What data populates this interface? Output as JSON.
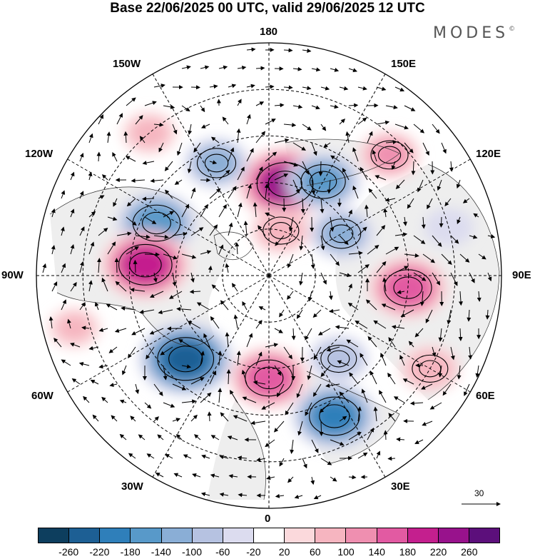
{
  "title": "Base 22/06/2025 00 UTC, valid 29/06/2025 12 UTC",
  "brand": "MODES",
  "brand_mark": "©",
  "longitude_labels": {
    "lon_180": "180",
    "lon_150e": "150E",
    "lon_120e": "120E",
    "lon_90e": "90E",
    "lon_60e": "60E",
    "lon_30e": "30E",
    "lon_0": "0",
    "lon_30w": "30W",
    "lon_60w": "60W",
    "lon_90w": "90W",
    "lon_120w": "120W",
    "lon_150w": "150W"
  },
  "wind_reference": {
    "value": "30"
  },
  "colorbar": {
    "colors": [
      "#0d3e5e",
      "#1d5f94",
      "#2f7fba",
      "#5899c9",
      "#8aaed6",
      "#b6c2e1",
      "#dcdcef",
      "#ffffff",
      "#fbd9dc",
      "#f6b5c0",
      "#ef8fb0",
      "#e25aa2",
      "#c41f8e",
      "#98128c",
      "#5c0f7b"
    ],
    "ticks": [
      "-260",
      "-220",
      "-180",
      "-140",
      "-100",
      "-60",
      "-20",
      "20",
      "60",
      "100",
      "140",
      "180",
      "220",
      "260"
    ]
  },
  "anomaly_centers": [
    {
      "lon": 170,
      "lat": 60,
      "value": 230
    },
    {
      "lon": 150,
      "lat": 55,
      "value": -150
    },
    {
      "lon": -155,
      "lat": 50,
      "value": -110
    },
    {
      "lon": -115,
      "lat": 50,
      "value": -170
    },
    {
      "lon": -95,
      "lat": 50,
      "value": 210
    },
    {
      "lon": -45,
      "lat": 52,
      "value": -230
    },
    {
      "lon": 0,
      "lat": 57,
      "value": 170
    },
    {
      "lon": 25,
      "lat": 40,
      "value": -190
    },
    {
      "lon": 40,
      "lat": 55,
      "value": -90
    },
    {
      "lon": 85,
      "lat": 45,
      "value": 170
    },
    {
      "lon": 120,
      "lat": 63,
      "value": -110
    },
    {
      "lon": 165,
      "lat": 75,
      "value": 90
    },
    {
      "lon": 135,
      "lat": 35,
      "value": 100
    },
    {
      "lon": 60,
      "lat": 30,
      "value": 90
    },
    {
      "lon": -140,
      "lat": 30,
      "value": 70
    },
    {
      "lon": 105,
      "lat": 30,
      "value": -50
    },
    {
      "lon": -75,
      "lat": 25,
      "value": 60
    }
  ]
}
